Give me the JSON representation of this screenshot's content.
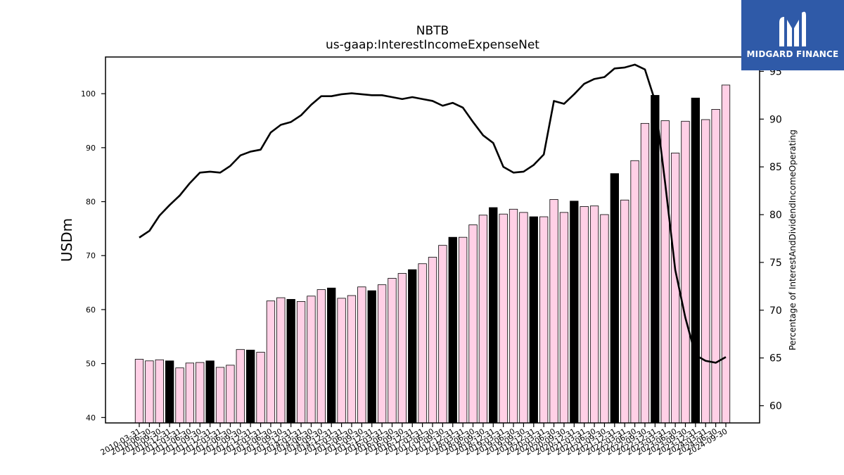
{
  "logo": {
    "text": "MIDGARD FINANCE",
    "background_color": "#2f5aa8"
  },
  "chart_data": {
    "type": "bar",
    "title": "NBTB",
    "subtitle": "us-gaap:InterestIncomeExpenseNet",
    "ylabel": "USDm",
    "y2label": "Percentage of InterestAndDividendIncomeOperating",
    "ylim": [
      39,
      106.8
    ],
    "y2lim": [
      58.2,
      96.5
    ],
    "yticks": [
      40,
      50,
      60,
      70,
      80,
      90,
      100
    ],
    "y2ticks": [
      60,
      65,
      70,
      75,
      80,
      85,
      90,
      95
    ],
    "colors": {
      "bar": "#ffd0e6",
      "bar_highlight": "#000000",
      "line": "#000000"
    },
    "categories": [
      "2010-03-31",
      "2010-06-30",
      "2010-09-30",
      "2010-12-31",
      "2011-03-31",
      "2011-06-30",
      "2011-09-30",
      "2011-12-31",
      "2012-03-31",
      "2012-06-30",
      "2012-09-30",
      "2012-12-31",
      "2013-03-31",
      "2013-06-30",
      "2013-09-30",
      "2013-12-31",
      "2014-03-31",
      "2014-06-30",
      "2014-09-30",
      "2014-12-31",
      "2015-03-31",
      "2015-06-30",
      "2015-09-30",
      "2015-12-31",
      "2016-03-31",
      "2016-06-30",
      "2016-09-30",
      "2016-12-31",
      "2017-03-31",
      "2017-06-30",
      "2017-09-30",
      "2017-12-31",
      "2018-03-31",
      "2018-06-30",
      "2018-09-30",
      "2018-12-31",
      "2019-03-31",
      "2019-06-30",
      "2019-09-30",
      "2019-12-31",
      "2020-03-31",
      "2020-06-30",
      "2020-09-30",
      "2020-12-31",
      "2021-03-31",
      "2021-06-30",
      "2021-09-30",
      "2021-12-31",
      "2022-03-31",
      "2022-06-30",
      "2022-09-30",
      "2022-12-31",
      "2023-03-31",
      "2023-06-30",
      "2023-09-30",
      "2023-12-31",
      "2024-03-31",
      "2024-06-30",
      "2024-09-30"
    ],
    "series": [
      {
        "kind": "bar",
        "axis": "left",
        "values": [
          50.8,
          50.5,
          50.7,
          50.5,
          49.2,
          50.1,
          50.2,
          50.5,
          49.3,
          49.7,
          52.6,
          52.5,
          52.1,
          61.6,
          62.2,
          61.9,
          61.5,
          62.5,
          63.7,
          64.0,
          62.1,
          62.6,
          64.2,
          63.5,
          64.6,
          65.8,
          66.7,
          67.4,
          68.5,
          69.7,
          71.9,
          73.4,
          73.4,
          75.7,
          77.5,
          78.9,
          77.7,
          78.6,
          78.0,
          77.2,
          77.2,
          80.4,
          78.0,
          80.1,
          79.1,
          79.2,
          77.6,
          85.2,
          80.3,
          87.6,
          94.5,
          99.7,
          95.0,
          89.0,
          94.9,
          99.2,
          95.2,
          97.1,
          101.6
        ],
        "highlight": [
          false,
          false,
          false,
          true,
          false,
          false,
          false,
          true,
          false,
          false,
          false,
          true,
          false,
          false,
          false,
          true,
          false,
          false,
          false,
          true,
          false,
          false,
          false,
          true,
          false,
          false,
          false,
          true,
          false,
          false,
          false,
          true,
          false,
          false,
          false,
          true,
          false,
          false,
          false,
          true,
          false,
          false,
          false,
          true,
          false,
          false,
          false,
          true,
          false,
          false,
          false,
          true,
          false,
          false,
          false,
          true,
          false,
          false,
          false
        ]
      },
      {
        "kind": "line",
        "axis": "right",
        "values": [
          77.6,
          78.3,
          79.9,
          81.0,
          82.0,
          83.3,
          84.4,
          84.5,
          84.4,
          85.1,
          86.2,
          86.6,
          86.8,
          88.6,
          89.4,
          89.7,
          90.4,
          91.5,
          92.4,
          92.4,
          92.6,
          92.7,
          92.6,
          92.5,
          92.5,
          92.3,
          92.1,
          92.3,
          92.1,
          91.9,
          91.4,
          91.7,
          91.2,
          89.7,
          88.3,
          87.5,
          85.0,
          84.4,
          84.5,
          85.2,
          86.3,
          91.9,
          91.6,
          92.6,
          93.7,
          94.2,
          94.4,
          95.3,
          95.4,
          95.7,
          95.2,
          91.9,
          83.3,
          74.2,
          69.2,
          65.3,
          64.7,
          64.5,
          65.1
        ]
      }
    ]
  }
}
